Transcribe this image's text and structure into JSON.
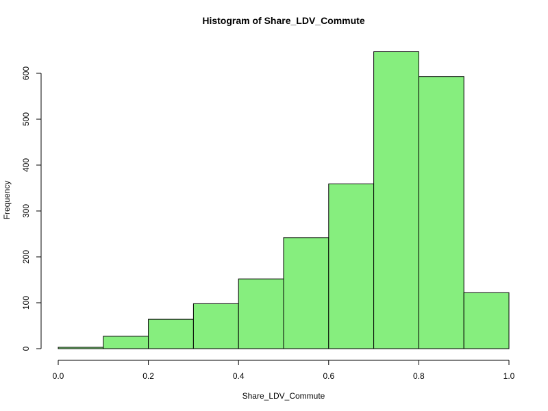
{
  "chart_data": {
    "type": "bar",
    "title": "Histogram of Share_LDV_Commute",
    "xlabel": "Share_LDV_Commute",
    "ylabel": "Frequency",
    "bins": [
      {
        "from": 0.0,
        "to": 0.1,
        "count": 3
      },
      {
        "from": 0.1,
        "to": 0.2,
        "count": 27
      },
      {
        "from": 0.2,
        "to": 0.3,
        "count": 64
      },
      {
        "from": 0.3,
        "to": 0.4,
        "count": 98
      },
      {
        "from": 0.4,
        "to": 0.5,
        "count": 152
      },
      {
        "from": 0.5,
        "to": 0.6,
        "count": 242
      },
      {
        "from": 0.6,
        "to": 0.7,
        "count": 359
      },
      {
        "from": 0.7,
        "to": 0.8,
        "count": 647
      },
      {
        "from": 0.8,
        "to": 0.9,
        "count": 593
      },
      {
        "from": 0.9,
        "to": 1.0,
        "count": 122
      }
    ],
    "xlim": [
      0,
      1
    ],
    "ylim": [
      0,
      650
    ],
    "x_ticks": [
      "0.0",
      "0.2",
      "0.4",
      "0.6",
      "0.8",
      "1.0"
    ],
    "y_ticks": [
      "0",
      "100",
      "200",
      "300",
      "400",
      "500",
      "600"
    ],
    "grid": false,
    "bar_color": "#86ee7e",
    "edge_color": "#000000"
  }
}
